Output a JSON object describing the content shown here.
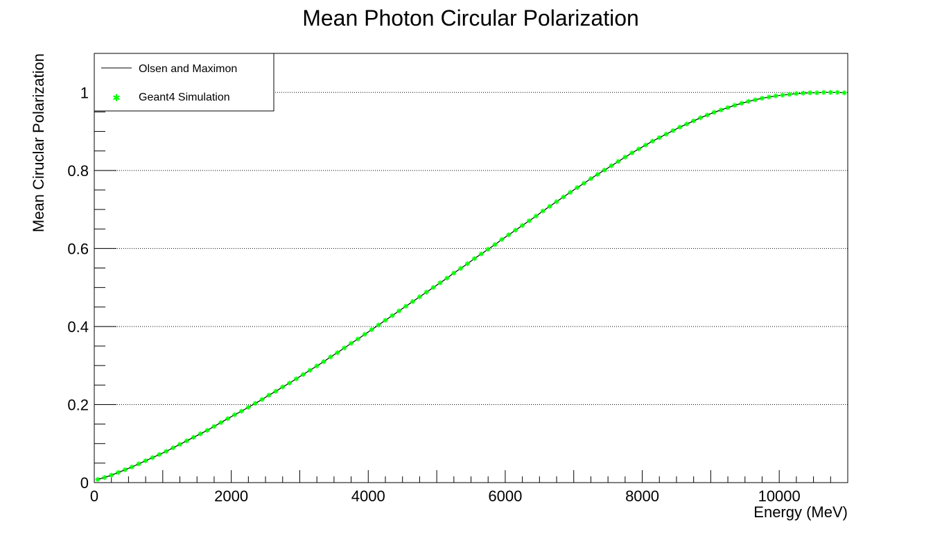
{
  "chart_data": {
    "type": "line",
    "title": "Mean Photon Circular Polarization",
    "xlabel": "Energy (MeV)",
    "ylabel": "Mean Ciruclar Polarization",
    "xlim": [
      0,
      11000
    ],
    "ylim": [
      0,
      1.1
    ],
    "x_ticks": [
      0,
      2000,
      4000,
      6000,
      8000,
      10000
    ],
    "x_tick_labels": [
      "0",
      "2000",
      "4000",
      "6000",
      "8000",
      "10000"
    ],
    "y_ticks": [
      0,
      0.2,
      0.4,
      0.6,
      0.8,
      1
    ],
    "y_tick_labels": [
      "0",
      "0.2",
      "0.4",
      "0.6",
      "0.8",
      "1"
    ],
    "grid": "horizontal dotted at major y ticks",
    "legend_position": "top-left",
    "legend": [
      {
        "label": "Olsen and Maximon",
        "marker": "line",
        "color": "#000000"
      },
      {
        "label": "Geant4 Simulation",
        "marker": "star",
        "color": "#00ff00"
      }
    ],
    "series": [
      {
        "name": "Olsen and Maximon",
        "style": "line",
        "color": "#000000",
        "x": [
          50,
          150,
          250,
          350,
          450,
          550,
          650,
          750,
          850,
          950,
          1050,
          1150,
          1250,
          1350,
          1450,
          1550,
          1650,
          1750,
          1850,
          1950,
          2050,
          2150,
          2250,
          2350,
          2450,
          2550,
          2650,
          2750,
          2850,
          2950,
          3050,
          3150,
          3250,
          3350,
          3450,
          3550,
          3650,
          3750,
          3850,
          3950,
          4050,
          4150,
          4250,
          4350,
          4450,
          4550,
          4650,
          4750,
          4850,
          4950,
          5050,
          5150,
          5250,
          5350,
          5450,
          5550,
          5650,
          5750,
          5850,
          5950,
          6050,
          6150,
          6250,
          6350,
          6450,
          6550,
          6650,
          6750,
          6850,
          6950,
          7050,
          7150,
          7250,
          7350,
          7450,
          7550,
          7650,
          7750,
          7850,
          7950,
          8050,
          8150,
          8250,
          8350,
          8450,
          8550,
          8650,
          8750,
          8850,
          8950,
          9050,
          9150,
          9250,
          9350,
          9450,
          9550,
          9650,
          9750,
          9850,
          9950,
          10050,
          10150,
          10250,
          10350,
          10450,
          10550,
          10650,
          10750,
          10850,
          10950
        ],
        "y": [
          0.008,
          0.013,
          0.019,
          0.026,
          0.033,
          0.04,
          0.048,
          0.056,
          0.064,
          0.072,
          0.08,
          0.089,
          0.098,
          0.107,
          0.116,
          0.125,
          0.134,
          0.144,
          0.154,
          0.164,
          0.174,
          0.183,
          0.193,
          0.203,
          0.213,
          0.224,
          0.234,
          0.245,
          0.255,
          0.266,
          0.277,
          0.288,
          0.299,
          0.31,
          0.322,
          0.333,
          0.345,
          0.357,
          0.368,
          0.38,
          0.392,
          0.404,
          0.416,
          0.428,
          0.44,
          0.452,
          0.464,
          0.476,
          0.488,
          0.5,
          0.512,
          0.524,
          0.537,
          0.549,
          0.561,
          0.574,
          0.586,
          0.598,
          0.61,
          0.623,
          0.635,
          0.647,
          0.659,
          0.671,
          0.683,
          0.696,
          0.708,
          0.72,
          0.732,
          0.744,
          0.756,
          0.767,
          0.779,
          0.79,
          0.801,
          0.812,
          0.823,
          0.834,
          0.845,
          0.855,
          0.865,
          0.875,
          0.884,
          0.893,
          0.902,
          0.911,
          0.919,
          0.927,
          0.935,
          0.942,
          0.949,
          0.955,
          0.961,
          0.967,
          0.972,
          0.977,
          0.981,
          0.985,
          0.988,
          0.991,
          0.993,
          0.995,
          0.997,
          0.998,
          0.999,
          0.999,
          1.0,
          1.0,
          1.0,
          0.999
        ]
      },
      {
        "name": "Geant4 Simulation",
        "style": "markers",
        "color": "#00ff00",
        "x": [
          50,
          150,
          250,
          350,
          450,
          550,
          650,
          750,
          850,
          950,
          1050,
          1150,
          1250,
          1350,
          1450,
          1550,
          1650,
          1750,
          1850,
          1950,
          2050,
          2150,
          2250,
          2350,
          2450,
          2550,
          2650,
          2750,
          2850,
          2950,
          3050,
          3150,
          3250,
          3350,
          3450,
          3550,
          3650,
          3750,
          3850,
          3950,
          4050,
          4150,
          4250,
          4350,
          4450,
          4550,
          4650,
          4750,
          4850,
          4950,
          5050,
          5150,
          5250,
          5350,
          5450,
          5550,
          5650,
          5750,
          5850,
          5950,
          6050,
          6150,
          6250,
          6350,
          6450,
          6550,
          6650,
          6750,
          6850,
          6950,
          7050,
          7150,
          7250,
          7350,
          7450,
          7550,
          7650,
          7750,
          7850,
          7950,
          8050,
          8150,
          8250,
          8350,
          8450,
          8550,
          8650,
          8750,
          8850,
          8950,
          9050,
          9150,
          9250,
          9350,
          9450,
          9550,
          9650,
          9750,
          9850,
          9950,
          10050,
          10150,
          10250,
          10350,
          10450,
          10550,
          10650,
          10750,
          10850,
          10950
        ],
        "y": [
          0.008,
          0.013,
          0.019,
          0.026,
          0.033,
          0.04,
          0.048,
          0.056,
          0.064,
          0.072,
          0.08,
          0.089,
          0.098,
          0.107,
          0.116,
          0.125,
          0.134,
          0.144,
          0.154,
          0.164,
          0.174,
          0.183,
          0.193,
          0.203,
          0.213,
          0.224,
          0.234,
          0.245,
          0.255,
          0.266,
          0.277,
          0.288,
          0.299,
          0.31,
          0.322,
          0.333,
          0.345,
          0.357,
          0.368,
          0.38,
          0.392,
          0.404,
          0.416,
          0.428,
          0.44,
          0.452,
          0.464,
          0.476,
          0.488,
          0.5,
          0.512,
          0.524,
          0.537,
          0.549,
          0.561,
          0.574,
          0.586,
          0.598,
          0.61,
          0.623,
          0.635,
          0.647,
          0.659,
          0.671,
          0.683,
          0.696,
          0.708,
          0.72,
          0.732,
          0.744,
          0.756,
          0.767,
          0.779,
          0.79,
          0.801,
          0.812,
          0.823,
          0.834,
          0.845,
          0.855,
          0.865,
          0.875,
          0.884,
          0.893,
          0.902,
          0.911,
          0.919,
          0.927,
          0.935,
          0.942,
          0.949,
          0.955,
          0.961,
          0.967,
          0.972,
          0.977,
          0.981,
          0.985,
          0.988,
          0.991,
          0.993,
          0.995,
          0.997,
          0.998,
          0.999,
          0.999,
          1.0,
          1.0,
          1.0,
          0.999
        ]
      }
    ]
  }
}
